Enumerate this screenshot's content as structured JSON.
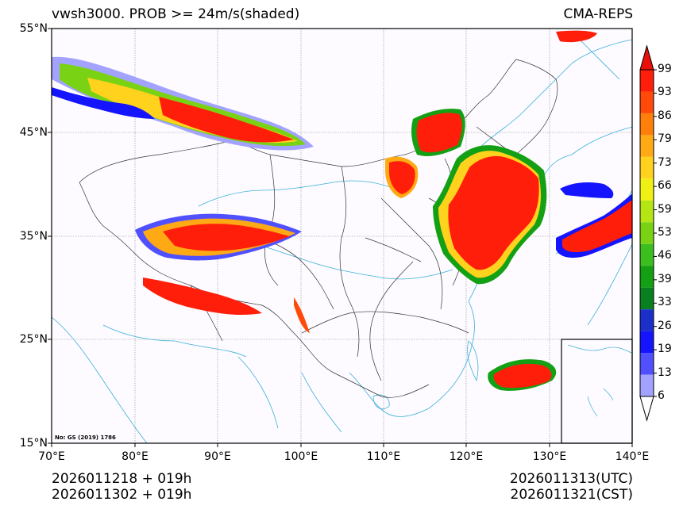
{
  "title": {
    "left": "vwsh3000. PROB >= 24m/s(shaded)",
    "right": "CMA-REPS"
  },
  "axes": {
    "lat_labels": [
      "55°N",
      "45°N",
      "35°N",
      "25°N",
      "15°N"
    ],
    "lon_labels": [
      "70°E",
      "80°E",
      "90°E",
      "100°E",
      "110°E",
      "120°E",
      "130°E",
      "140°E"
    ]
  },
  "colorbar": {
    "levels": [
      "6",
      "13",
      "19",
      "26",
      "33",
      "39",
      "46",
      "53",
      "59",
      "66",
      "73",
      "79",
      "86",
      "93",
      "99"
    ],
    "colors": [
      "#a3a3ff",
      "#5050ff",
      "#1414ff",
      "#1a30c8",
      "#0a7f1f",
      "#14a014",
      "#3cbe1e",
      "#7ad214",
      "#b4e614",
      "#f0f014",
      "#ffd21e",
      "#ffaa14",
      "#ff7f0a",
      "#ff4a0a",
      "#ff1e0a"
    ],
    "over_color": "#e81008",
    "under_color": "#ffffff"
  },
  "map_note": "No: GS (2019) 1786",
  "footer": {
    "left_line1": "2026011218  +  019h",
    "left_line2": "2026011302  +  019h",
    "right_line1": "2026011313(UTC)",
    "right_line2": "2026011321(CST)"
  }
}
